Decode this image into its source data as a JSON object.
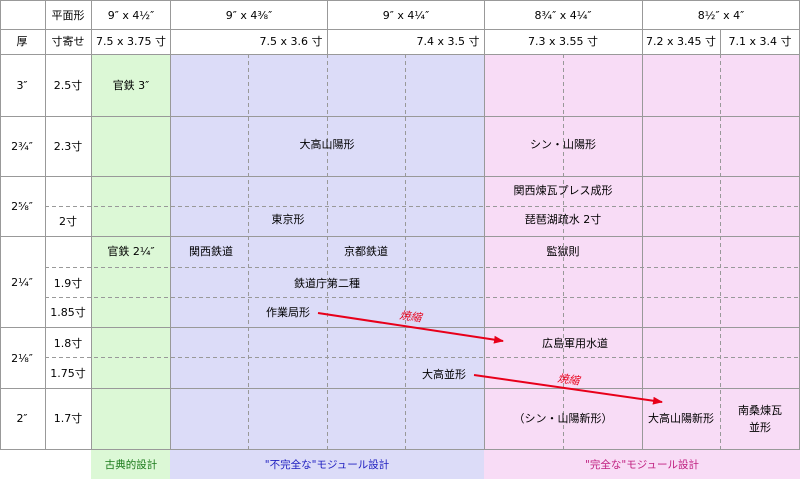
{
  "colors": {
    "classic": "#dcf8d6",
    "imperfect": "#dcdcf8",
    "perfect": "#f8dcf6",
    "grid": "#999999",
    "arrow": "#e8001a",
    "caption_classic": "#1a7a1a",
    "caption_imperfect": "#2020c0",
    "caption_perfect": "#c02080"
  },
  "header": {
    "plan_shape": "平面形",
    "thickness": "厚",
    "sun_approx": "寸寄せ",
    "col_sizes": [
      "9″ x 4½″",
      "9″ x 4⅜″",
      "9″ x 4¼″",
      "8¾″ x 4¼″",
      "8½″ x 4″"
    ],
    "sun_sizes": [
      "7.5 x 3.75 寸",
      "7.5 x 3.6 寸",
      "7.4 x 3.5 寸",
      "7.3 x 3.55 寸",
      "7.2 x 3.45 寸",
      "7.1 x 3.4 寸"
    ]
  },
  "rows": {
    "thickness": [
      "3″",
      "2¾″",
      "2⅝″",
      "2¼″",
      "2⅛″",
      "2″"
    ],
    "sun": [
      "2.5寸",
      "2.3寸",
      "2寸",
      "1.9寸",
      "1.85寸",
      "1.8寸",
      "1.75寸",
      "1.7寸"
    ]
  },
  "cells": {
    "kantetsu3": "官鉄 3″",
    "kantetsu214": "官鉄 2¼″",
    "daiko_sanyo": "大高山陽形",
    "shin_sanyo": "シン・山陽形",
    "kansai_press": "関西煉瓦プレス成形",
    "biwako": "琵琶湖疏水 2寸",
    "tokyo": "東京形",
    "kansai_railway": "関西鉄道",
    "kyoto_railway": "京都鉄道",
    "kangoku": "監獄則",
    "tetsudocho": "鉄道庁第二種",
    "sagyokyoku": "作業局形",
    "hiroshima": "広島軍用水道",
    "daiko_nami": "大高並形",
    "shin_sanyo_new": "（シン・山陽新形）",
    "daiko_sanyo_new": "大高山陽新形",
    "nanso": [
      "南桑煉瓦",
      "並形"
    ]
  },
  "arrows": {
    "label1": "焼縮",
    "label2": "焼縮"
  },
  "captions": {
    "classic": "古典的設計",
    "imperfect": "\"不完全な\"モジュール設計",
    "perfect": "\"完全な\"モジュール設計"
  }
}
